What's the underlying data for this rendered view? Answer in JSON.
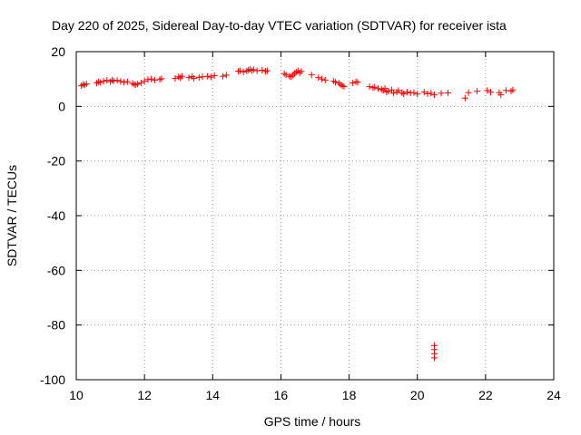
{
  "chart_data": {
    "type": "scatter",
    "title": "Day 220 of 2025, Sidereal Day-to-day VTEC variation (SDTVAR) for receiver ista",
    "xlabel": "GPS time / hours",
    "ylabel": "SDTVAR / TECUs",
    "xlim": [
      10,
      24
    ],
    "ylim": [
      -100,
      20
    ],
    "xticks": [
      "10",
      "12",
      "14",
      "16",
      "18",
      "20",
      "22",
      "24"
    ],
    "yticks": [
      "20",
      "0",
      "-20",
      "-40",
      "-60",
      "-80",
      "-100"
    ],
    "grid": true,
    "marker": "+",
    "color": "#ff0000",
    "series": [
      {
        "name": "SDTVAR",
        "points": [
          [
            10.15,
            7.5
          ],
          [
            10.2,
            8.0
          ],
          [
            10.25,
            7.8
          ],
          [
            10.3,
            8.2
          ],
          [
            10.6,
            8.5
          ],
          [
            10.65,
            9.0
          ],
          [
            10.7,
            8.7
          ],
          [
            10.8,
            9.2
          ],
          [
            10.9,
            9.5
          ],
          [
            11.0,
            9.0
          ],
          [
            11.05,
            9.6
          ],
          [
            11.1,
            9.3
          ],
          [
            11.2,
            9.5
          ],
          [
            11.3,
            9.1
          ],
          [
            11.4,
            8.8
          ],
          [
            11.5,
            9.0
          ],
          [
            11.65,
            8.4
          ],
          [
            11.7,
            8.0
          ],
          [
            11.75,
            7.8
          ],
          [
            11.8,
            8.2
          ],
          [
            11.9,
            8.6
          ],
          [
            12.0,
            9.2
          ],
          [
            12.1,
            9.8
          ],
          [
            12.2,
            10.0
          ],
          [
            12.3,
            9.6
          ],
          [
            12.45,
            9.8
          ],
          [
            12.5,
            10.1
          ],
          [
            12.9,
            10.2
          ],
          [
            13.0,
            10.8
          ],
          [
            13.05,
            10.4
          ],
          [
            13.1,
            11.0
          ],
          [
            13.3,
            10.5
          ],
          [
            13.4,
            10.9
          ],
          [
            13.45,
            10.2
          ],
          [
            13.6,
            10.6
          ],
          [
            13.7,
            10.8
          ],
          [
            13.85,
            11.0
          ],
          [
            13.95,
            10.7
          ],
          [
            14.05,
            11.2
          ],
          [
            14.3,
            11.0
          ],
          [
            14.4,
            11.4
          ],
          [
            14.75,
            12.8
          ],
          [
            14.8,
            13.0
          ],
          [
            14.9,
            12.6
          ],
          [
            15.0,
            12.9
          ],
          [
            15.05,
            13.3
          ],
          [
            15.1,
            13.5
          ],
          [
            15.15,
            13.1
          ],
          [
            15.2,
            13.4
          ],
          [
            15.3,
            13.0
          ],
          [
            15.45,
            13.2
          ],
          [
            15.55,
            12.8
          ],
          [
            15.6,
            13.0
          ],
          [
            16.1,
            12.0
          ],
          [
            16.15,
            11.5
          ],
          [
            16.25,
            11.0
          ],
          [
            16.3,
            10.8
          ],
          [
            16.35,
            11.4
          ],
          [
            16.4,
            12.0
          ],
          [
            16.45,
            12.5
          ],
          [
            16.5,
            13.0
          ],
          [
            16.55,
            12.2
          ],
          [
            16.6,
            12.8
          ],
          [
            16.9,
            11.5
          ],
          [
            17.1,
            10.5
          ],
          [
            17.2,
            10.0
          ],
          [
            17.3,
            9.6
          ],
          [
            17.55,
            9.2
          ],
          [
            17.6,
            8.8
          ],
          [
            17.7,
            8.5
          ],
          [
            17.75,
            8.0
          ],
          [
            17.8,
            7.5
          ],
          [
            17.85,
            7.2
          ],
          [
            18.1,
            8.5
          ],
          [
            18.2,
            9.0
          ],
          [
            18.25,
            8.8
          ],
          [
            18.6,
            7.2
          ],
          [
            18.7,
            6.8
          ],
          [
            18.75,
            7.0
          ],
          [
            18.85,
            6.5
          ],
          [
            18.95,
            6.2
          ],
          [
            19.0,
            5.8
          ],
          [
            19.05,
            6.5
          ],
          [
            19.1,
            5.2
          ],
          [
            19.15,
            5.5
          ],
          [
            19.25,
            6.0
          ],
          [
            19.3,
            4.8
          ],
          [
            19.4,
            5.2
          ],
          [
            19.45,
            5.8
          ],
          [
            19.55,
            5.0
          ],
          [
            19.6,
            4.6
          ],
          [
            19.7,
            5.2
          ],
          [
            19.8,
            4.9
          ],
          [
            19.9,
            5.0
          ],
          [
            20.0,
            4.5
          ],
          [
            20.2,
            5.2
          ],
          [
            20.3,
            4.6
          ],
          [
            20.4,
            4.8
          ],
          [
            20.5,
            4.2
          ],
          [
            20.7,
            4.8
          ],
          [
            20.9,
            4.9
          ],
          [
            21.4,
            3.0
          ],
          [
            21.5,
            5.0
          ],
          [
            21.75,
            5.5
          ],
          [
            22.05,
            5.8
          ],
          [
            22.15,
            5.2
          ],
          [
            22.4,
            5.0
          ],
          [
            22.45,
            4.2
          ],
          [
            22.6,
            5.8
          ],
          [
            22.75,
            5.5
          ],
          [
            22.8,
            6.0
          ],
          [
            20.5,
            -87.5
          ],
          [
            20.5,
            -89.0
          ],
          [
            20.5,
            -90.5
          ],
          [
            20.5,
            -92.0
          ]
        ]
      }
    ]
  }
}
